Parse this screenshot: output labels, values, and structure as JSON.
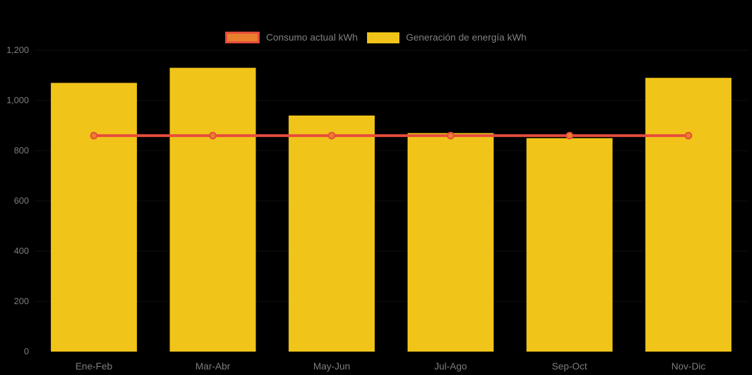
{
  "chart": {
    "background": "#000000",
    "axis_text_color": "#7d7d7d",
    "legend": [
      {
        "label": "Consumo actual kWh",
        "swatch_fill": "#E8802D",
        "swatch_border": "#E74C3C",
        "kind": "line"
      },
      {
        "label": "Generación de energía kWh",
        "swatch_fill": "#F0C419",
        "swatch_border": "#F0C419",
        "kind": "bar"
      }
    ]
  },
  "chart_data": {
    "type": "bar+line",
    "title": "",
    "xlabel": "",
    "ylabel": "",
    "categories": [
      "Ene-Feb",
      "Mar-Abr",
      "May-Jun",
      "Jul-Ago",
      "Sep-Oct",
      "Nov-Dic"
    ],
    "series": [
      {
        "name": "Consumo actual kWh",
        "type": "line",
        "color": "#E74C3C",
        "marker_fill": "#E8802D",
        "marker_stroke": "#E74C3C",
        "values": [
          860,
          860,
          860,
          860,
          860,
          860
        ]
      },
      {
        "name": "Generación de energía kWh",
        "type": "bar",
        "color": "#F0C419",
        "values": [
          1070,
          1130,
          940,
          870,
          850,
          1090
        ]
      }
    ],
    "ylim": [
      0,
      1200
    ],
    "yticks": [
      0,
      200,
      400,
      600,
      800,
      1000,
      1200
    ],
    "ytick_labels": [
      "0",
      "200",
      "400",
      "600",
      "800",
      "1,000",
      "1,200"
    ],
    "grid": "faint-horizontal",
    "legend_position": "top-center"
  }
}
